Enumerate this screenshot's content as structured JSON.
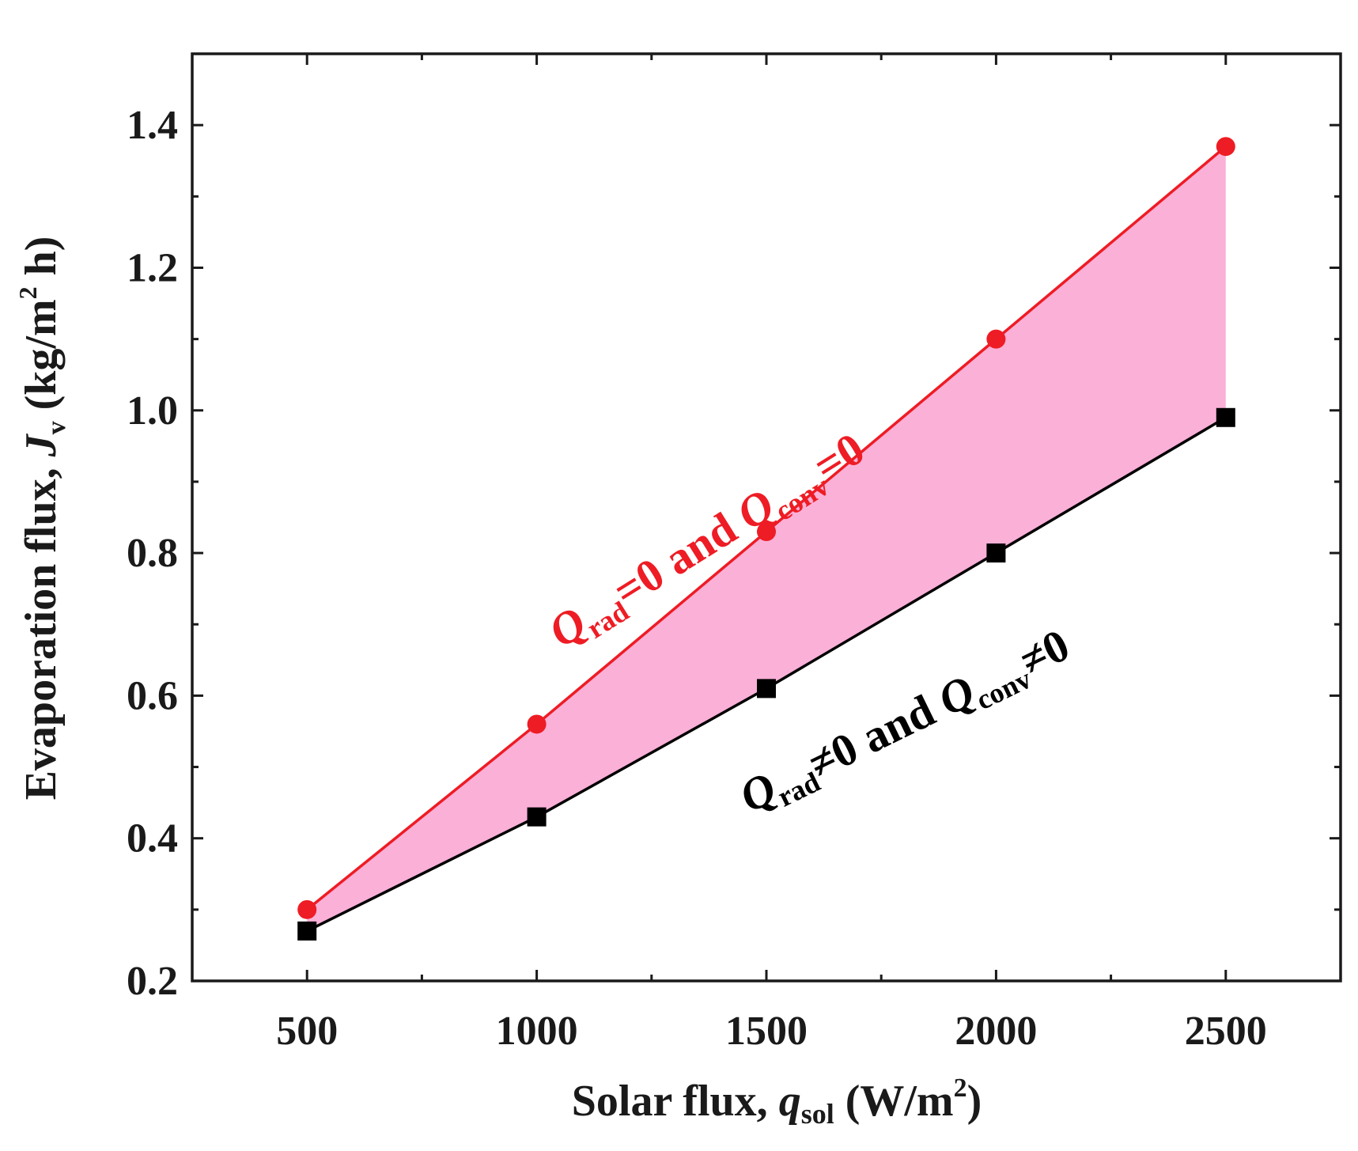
{
  "chart_data": {
    "type": "line",
    "x": [
      500,
      1000,
      1500,
      2000,
      2500
    ],
    "xlim": [
      250,
      2750
    ],
    "ylim": [
      0.2,
      1.5
    ],
    "xticks": [
      500,
      1000,
      1500,
      2000,
      2500
    ],
    "xtick_labels": [
      "500",
      "1000",
      "1500",
      "2000",
      "2500"
    ],
    "yticks": [
      0.2,
      0.4,
      0.6,
      0.8,
      1.0,
      1.2,
      1.4
    ],
    "ytick_labels": [
      "0.2",
      "0.4",
      "0.6",
      "0.8",
      "1.0",
      "1.2",
      "1.4"
    ],
    "xlabel": {
      "prefix": "Solar flux, ",
      "symbol": "q",
      "subscript": "sol",
      "unit_open": " (W/m",
      "superscript": "2",
      "unit_close": ")"
    },
    "ylabel": {
      "prefix": "Evaporation flux, ",
      "symbol": "J",
      "subscript": "v",
      "unit_open": " (kg/m",
      "superscript": "2",
      "unit_close": " h)"
    },
    "series": [
      {
        "name": "Q_rad=0 and Q_conv=0",
        "color": "#ee1c24",
        "marker": "circle",
        "values": [
          0.3,
          0.56,
          0.83,
          1.1,
          1.37
        ]
      },
      {
        "name": "Q_rad≠0 and Q_conv≠0",
        "color": "#000000",
        "marker": "square",
        "values": [
          0.27,
          0.43,
          0.61,
          0.8,
          0.99
        ]
      }
    ],
    "fill_between": {
      "color": "#fbb0d8"
    },
    "annotations": [
      {
        "symbol": "Q",
        "sub1": "rad",
        "mid": "=0 and ",
        "symbol2": "Q",
        "sub2": "conv",
        "end": "=0",
        "color": "#ee1c24"
      },
      {
        "symbol": "Q",
        "sub1": "rad",
        "mid": "≠0 and ",
        "symbol2": "Q",
        "sub2": "conv",
        "end": "≠0",
        "color": "#000000"
      }
    ]
  }
}
